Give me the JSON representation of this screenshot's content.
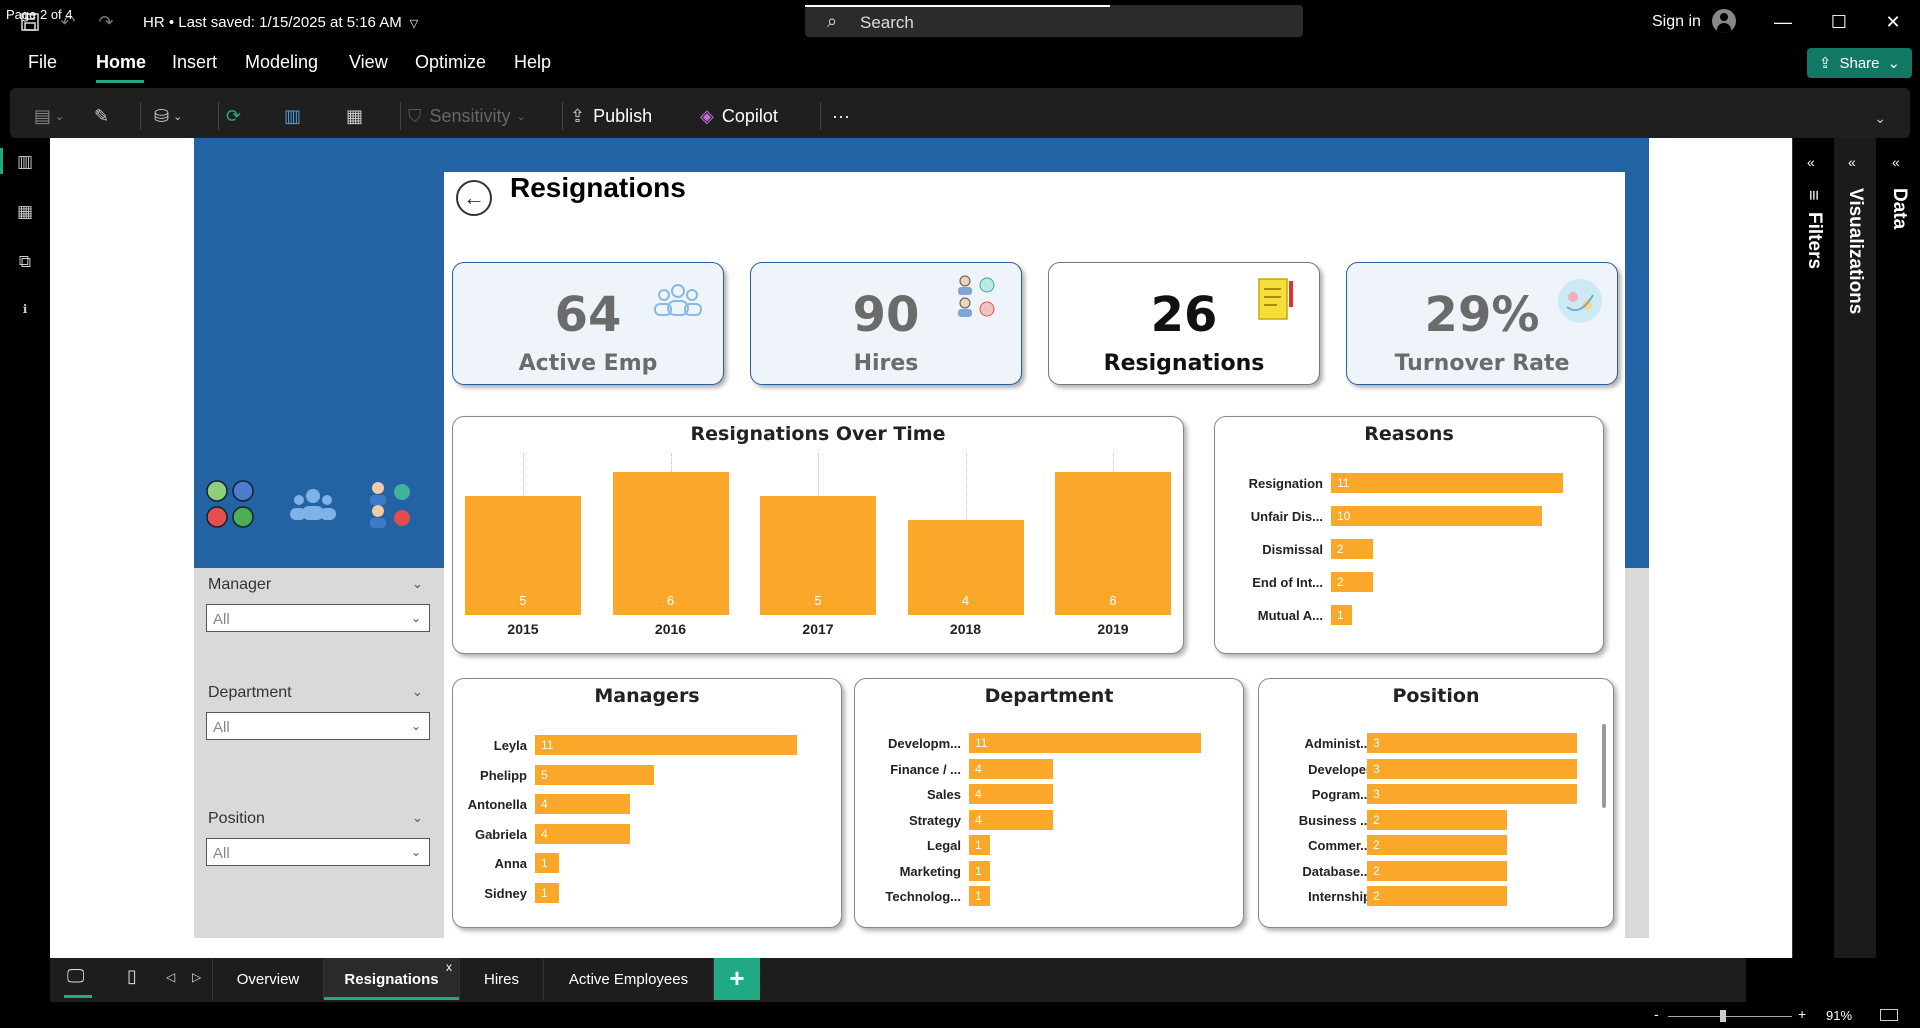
{
  "titlebar": {
    "doc_title": "HR • Last saved: 1/15/2025 at 5:16 AM",
    "search_placeholder": "Search",
    "sign_in": "Sign in"
  },
  "menu": {
    "items": [
      "File",
      "Home",
      "Insert",
      "Modeling",
      "View",
      "Optimize",
      "Help"
    ],
    "active": "Home",
    "share": "Share"
  },
  "ribbon": {
    "sensitivity": "Sensitivity",
    "publish": "Publish",
    "copilot": "Copilot",
    "more": "···"
  },
  "report": {
    "title": "Resignations",
    "kpis": [
      {
        "value": "64",
        "label": "Active Emp"
      },
      {
        "value": "90",
        "label": "Hires"
      },
      {
        "value": "26",
        "label": "Resignations"
      },
      {
        "value": "29%",
        "label": "Turnover Rate"
      }
    ],
    "slicers": [
      {
        "label": "Manager",
        "value": "All"
      },
      {
        "label": "Department",
        "value": "All"
      },
      {
        "label": "Position",
        "value": "All"
      }
    ]
  },
  "chart_data": [
    {
      "type": "bar",
      "title": "Resignations Over Time",
      "categories": [
        "2015",
        "2016",
        "2017",
        "2018",
        "2019"
      ],
      "values": [
        5,
        6,
        5,
        4,
        6
      ],
      "color": "#faa72a"
    },
    {
      "type": "bar",
      "orientation": "horizontal",
      "title": "Reasons",
      "categories": [
        "Resignation",
        "Unfair Dis...",
        "Dismissal",
        "End of Int...",
        "Mutual A..."
      ],
      "values": [
        11,
        10,
        2,
        2,
        1
      ],
      "color": "#faa72a"
    },
    {
      "type": "bar",
      "orientation": "horizontal",
      "title": "Managers",
      "categories": [
        "Leyla",
        "Phelipp",
        "Antonella",
        "Gabriela",
        "Anna",
        "Sidney"
      ],
      "values": [
        11,
        5,
        4,
        4,
        1,
        1
      ],
      "color": "#faa72a"
    },
    {
      "type": "bar",
      "orientation": "horizontal",
      "title": "Department",
      "categories": [
        "Developm...",
        "Finance / ...",
        "Sales",
        "Strategy",
        "Legal",
        "Marketing",
        "Technolog..."
      ],
      "values": [
        11,
        4,
        4,
        4,
        1,
        1,
        1
      ],
      "color": "#faa72a"
    },
    {
      "type": "bar",
      "orientation": "horizontal",
      "title": "Position",
      "categories": [
        "Administ...",
        "Developer",
        "Pogram...",
        "Business ...",
        "Commer...",
        "Database...",
        "Internship"
      ],
      "values": [
        3,
        3,
        3,
        2,
        2,
        2,
        2
      ],
      "color": "#faa72a"
    }
  ],
  "panes": {
    "filters": "Filters",
    "visualizations": "Visualizations",
    "data": "Data"
  },
  "tabs": {
    "items": [
      "Overview",
      "Resignations",
      "Hires",
      "Active Employees"
    ],
    "active": "Resignations",
    "close": "x",
    "add": "+"
  },
  "status": {
    "page": "Page 2 of 4",
    "zoom": "91%"
  }
}
